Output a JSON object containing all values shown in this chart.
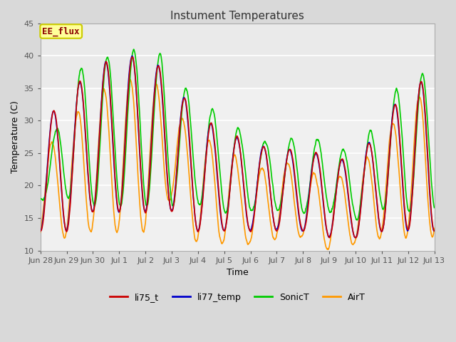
{
  "title": "Instument Temperatures",
  "xlabel": "Time",
  "ylabel": "Temperature (C)",
  "ylim": [
    10,
    45
  ],
  "background_color": "#d9d9d9",
  "plot_bg_color": "#f0f0f0",
  "annotation_text": "EE_flux",
  "annotation_color": "#8b0000",
  "annotation_bg": "#ffff99",
  "annotation_border": "#cccc00",
  "series": {
    "li75_t": {
      "color": "#cc0000",
      "lw": 1.2
    },
    "li77_temp": {
      "color": "#0000cc",
      "lw": 1.2
    },
    "SonicT": {
      "color": "#00cc00",
      "lw": 1.2
    },
    "AirT": {
      "color": "#ff9900",
      "lw": 1.2
    }
  },
  "xtick_labels": [
    "Jun 28",
    "Jun 29",
    "Jun 30",
    "Jul 1",
    "Jul 2",
    "Jul 3",
    "Jul 4",
    "Jul 5",
    "Jul 6",
    "Jul 7",
    "Jul 8",
    "Jul 9",
    "Jul 10",
    "Jul 11",
    "Jul 12",
    "Jul 13"
  ]
}
